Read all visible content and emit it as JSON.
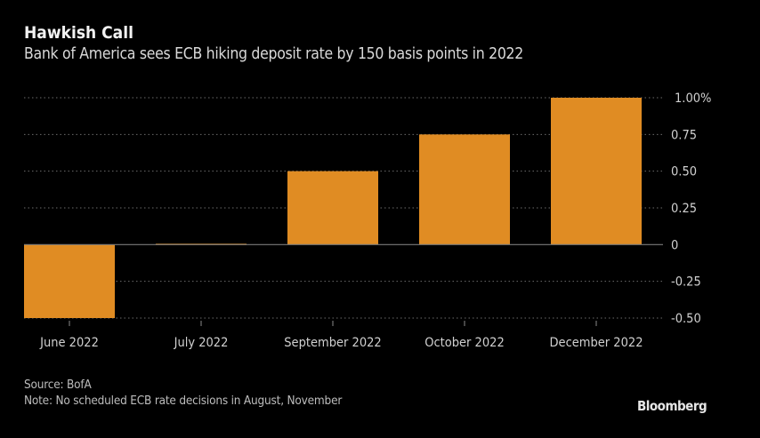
{
  "chart_data": {
    "type": "bar",
    "title": "Hawkish Call",
    "subtitle": "Bank of America sees ECB hiking deposit rate by 150 basis points in 2022",
    "categories": [
      "June 2022",
      "July 2022",
      "September 2022",
      "October 2022",
      "December 2022"
    ],
    "values": [
      -0.5,
      0.0,
      0.5,
      0.75,
      1.0
    ],
    "xlabel": "",
    "ylabel": "",
    "unit": "%",
    "ylim": [
      -0.5,
      1.0
    ],
    "yticks": [
      1.0,
      0.75,
      0.5,
      0.25,
      0,
      -0.25,
      -0.5
    ],
    "ytick_labels": [
      "1.00%",
      "0.75",
      "0.50",
      "0.25",
      "0",
      "-0.25",
      "-0.50"
    ],
    "y_axis_side": "right",
    "grid": true,
    "bar_color": "#e08c23",
    "source": "Source: BofA",
    "note": "Note: No scheduled ECB rate decisions in August, November",
    "brand": "Bloomberg"
  }
}
